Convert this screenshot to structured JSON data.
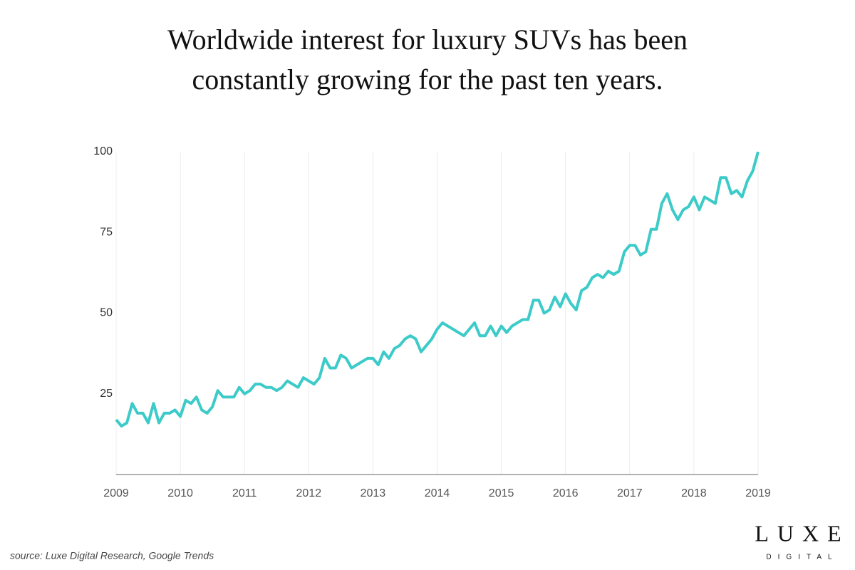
{
  "chart_data": {
    "type": "line",
    "title": "Worldwide interest for luxury SUVs has been constantly growing for the past ten years.",
    "source": "source: Luxe Digital Research, Google Trends",
    "categories": [
      "2009",
      null,
      null,
      null,
      null,
      null,
      null,
      null,
      null,
      null,
      null,
      null,
      "2010",
      null,
      null,
      null,
      null,
      null,
      null,
      null,
      null,
      null,
      null,
      null,
      "2011",
      null,
      null,
      null,
      null,
      null,
      null,
      null,
      null,
      null,
      null,
      null,
      "2012",
      null,
      null,
      null,
      null,
      null,
      null,
      null,
      null,
      null,
      null,
      null,
      "2013",
      null,
      null,
      null,
      null,
      null,
      null,
      null,
      null,
      null,
      null,
      null,
      "2014",
      null,
      null,
      null,
      null,
      null,
      null,
      null,
      null,
      null,
      null,
      null,
      "2015",
      null,
      null,
      null,
      null,
      null,
      null,
      null,
      null,
      null,
      null,
      null,
      "2016",
      null,
      null,
      null,
      null,
      null,
      null,
      null,
      null,
      null,
      null,
      null,
      "2017",
      null,
      null,
      null,
      null,
      null,
      null,
      null,
      null,
      null,
      null,
      null,
      "2018",
      null,
      null,
      null,
      null,
      null,
      null,
      null,
      null,
      null,
      null,
      null,
      "2019"
    ],
    "values": [
      17,
      15,
      16,
      22,
      19,
      19,
      16,
      22,
      16,
      19,
      19,
      20,
      18,
      23,
      22,
      24,
      20,
      19,
      21,
      26,
      24,
      24,
      24,
      27,
      25,
      26,
      28,
      28,
      27,
      27,
      26,
      27,
      29,
      28,
      27,
      30,
      29,
      28,
      30,
      36,
      33,
      33,
      37,
      36,
      33,
      34,
      35,
      36,
      36,
      34,
      38,
      36,
      39,
      40,
      42,
      43,
      42,
      38,
      40,
      42,
      45,
      47,
      46,
      45,
      44,
      43,
      45,
      47,
      43,
      43,
      46,
      43,
      46,
      44,
      46,
      47,
      48,
      48,
      54,
      54,
      50,
      51,
      55,
      52,
      56,
      53,
      51,
      57,
      58,
      61,
      62,
      61,
      63,
      62,
      63,
      69,
      71,
      71,
      68,
      69,
      76,
      76,
      84,
      87,
      82,
      79,
      82,
      83,
      86,
      82,
      86,
      85,
      84,
      92,
      92,
      87,
      88,
      86,
      91,
      94,
      100
    ],
    "color": "#3ccbc8",
    "ylim": [
      0,
      100
    ],
    "yticks": [
      25,
      50,
      75,
      100
    ],
    "grid": "x"
  },
  "brand": {
    "name": "LUXE",
    "tagline": "DIGITAL"
  }
}
